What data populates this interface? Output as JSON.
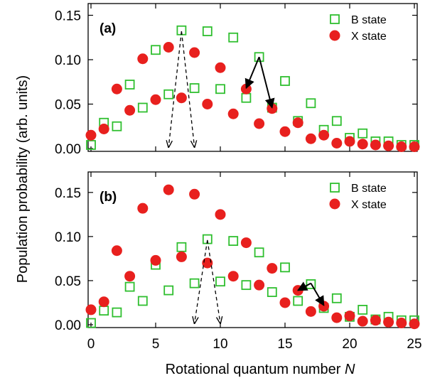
{
  "chart_data": {
    "type": "scatter",
    "xlabel": "Rotational quantum number ",
    "xlabel_italic": "N",
    "ylabel": "Population probability (arb. units)",
    "xlim": [
      0,
      25
    ],
    "x_ticks": [
      0,
      5,
      10,
      15,
      20,
      25
    ],
    "y_ticks": [
      0.0,
      0.05,
      0.1,
      0.15
    ],
    "y_tick_labels": [
      "0.00",
      "0.05",
      "0.10",
      "0.15"
    ],
    "colors": {
      "B": "#2fbf2f",
      "X": "#e8201e"
    },
    "legend_placement": "top-right",
    "panels": [
      {
        "label": "(a)",
        "ylim": [
          0,
          0.16
        ],
        "series": [
          {
            "name": "B state",
            "marker": "square-open",
            "x": [
              0,
              1,
              2,
              3,
              4,
              5,
              6,
              7,
              8,
              9,
              10,
              11,
              12,
              13,
              14,
              15,
              16,
              17,
              18,
              19,
              20,
              21,
              22,
              23,
              24,
              25
            ],
            "y": [
              0.004,
              0.029,
              0.025,
              0.072,
              0.046,
              0.111,
              0.061,
              0.133,
              0.068,
              0.132,
              0.067,
              0.125,
              0.057,
              0.103,
              0.046,
              0.076,
              0.031,
              0.051,
              0.021,
              0.031,
              0.012,
              0.017,
              0.008,
              0.008,
              0.004,
              0.004
            ]
          },
          {
            "name": "X state",
            "marker": "circle-filled",
            "x": [
              0,
              1,
              2,
              3,
              4,
              5,
              6,
              7,
              8,
              9,
              10,
              11,
              12,
              13,
              14,
              15,
              16,
              17,
              18,
              19,
              20,
              21,
              22,
              23,
              24,
              25
            ],
            "y": [
              0.015,
              0.022,
              0.067,
              0.043,
              0.101,
              0.055,
              0.114,
              0.057,
              0.108,
              0.05,
              0.091,
              0.039,
              0.067,
              0.028,
              0.045,
              0.019,
              0.029,
              0.011,
              0.015,
              0.006,
              0.008,
              0.005,
              0.004,
              0.003,
              0.002,
              0.002
            ]
          }
        ],
        "annotations": {
          "dashed_arrows": [
            {
              "from": [
                7,
                0.132
              ],
              "to": [
                6,
                0.0
              ]
            },
            {
              "from": [
                7,
                0.132
              ],
              "to": [
                8,
                0.0
              ]
            }
          ],
          "solid_arrows": [
            {
              "from": [
                13,
                0.103
              ],
              "to": [
                12,
                0.068
              ]
            },
            {
              "from": [
                13,
                0.103
              ],
              "to": [
                14,
                0.046
              ]
            }
          ]
        }
      },
      {
        "label": "(b)",
        "ylim": [
          0,
          0.17
        ],
        "series": [
          {
            "name": "B state",
            "marker": "square-open",
            "x": [
              0,
              1,
              2,
              3,
              4,
              5,
              6,
              7,
              8,
              9,
              10,
              11,
              12,
              13,
              14,
              15,
              16,
              17,
              18,
              19,
              20,
              21,
              22,
              23,
              24,
              25
            ],
            "y": [
              0.002,
              0.016,
              0.014,
              0.043,
              0.027,
              0.068,
              0.039,
              0.088,
              0.047,
              0.097,
              0.049,
              0.095,
              0.045,
              0.082,
              0.037,
              0.065,
              0.027,
              0.046,
              0.019,
              0.03,
              0.009,
              0.017,
              0.006,
              0.009,
              0.005,
              0.005
            ]
          },
          {
            "name": "X state",
            "marker": "circle-filled",
            "x": [
              0,
              1,
              2,
              3,
              4,
              5,
              6,
              7,
              8,
              9,
              10,
              11,
              12,
              13,
              14,
              15,
              16,
              17,
              18,
              19,
              20,
              21,
              22,
              23,
              24,
              25
            ],
            "y": [
              0.017,
              0.026,
              0.084,
              0.055,
              0.132,
              0.073,
              0.153,
              0.077,
              0.148,
              0.07,
              0.125,
              0.055,
              0.093,
              0.045,
              0.064,
              0.025,
              0.039,
              0.015,
              0.021,
              0.008,
              0.01,
              0.004,
              0.005,
              0.003,
              0.002,
              0.001
            ]
          }
        ],
        "annotations": {
          "dashed_arrows": [
            {
              "from": [
                9,
                0.096
              ],
              "to": [
                8,
                0.0
              ]
            },
            {
              "from": [
                9,
                0.096
              ],
              "to": [
                10,
                0.0
              ]
            }
          ],
          "solid_arrows": [
            {
              "from": [
                17,
                0.047
              ],
              "to": [
                16,
                0.039
              ]
            },
            {
              "from": [
                17,
                0.047
              ],
              "to": [
                18,
                0.022
              ]
            }
          ]
        }
      }
    ]
  }
}
